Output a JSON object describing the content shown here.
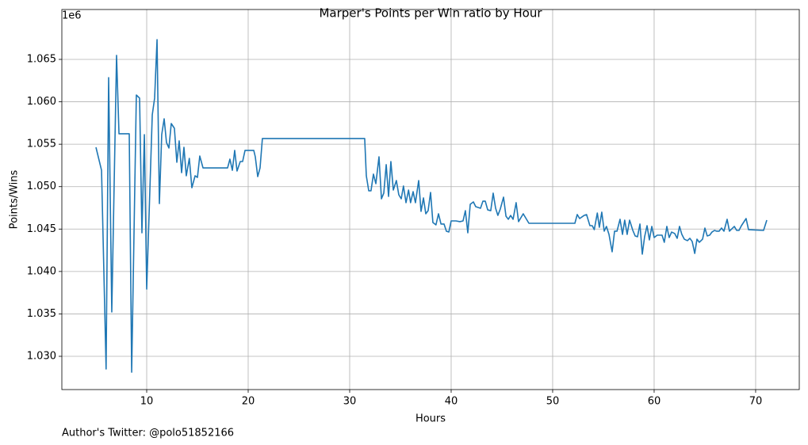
{
  "chart_data": {
    "type": "line",
    "title": "Marper's Points per Win ratio by Hour",
    "x_label": "Hours",
    "y_label": "Points/Wins",
    "y_offset_label": "1e6",
    "annotation": "Author's Twitter: @polo51852166",
    "grid": true,
    "xlim": [
      1.64,
      74.3
    ],
    "ylim": [
      1026080,
      1070880
    ],
    "xticks": [
      10,
      20,
      30,
      40,
      50,
      60,
      70
    ],
    "yticks": [
      {
        "value": 1030000,
        "label": "1.030"
      },
      {
        "value": 1035000,
        "label": "1.035"
      },
      {
        "value": 1040000,
        "label": "1.040"
      },
      {
        "value": 1045000,
        "label": "1.045"
      },
      {
        "value": 1050000,
        "label": "1.050"
      },
      {
        "value": 1055000,
        "label": "1.055"
      },
      {
        "value": 1060000,
        "label": "1.060"
      },
      {
        "value": 1065000,
        "label": "1.065"
      }
    ],
    "series": [
      {
        "name": "Points/Wins",
        "color": "#1f77b4",
        "x": [
          5.0,
          5.55,
          6.0,
          6.25,
          6.56,
          7.03,
          7.27,
          8.28,
          8.52,
          8.98,
          9.3,
          9.53,
          9.77,
          10.0,
          10.55,
          10.78,
          11.02,
          11.25,
          11.48,
          11.72,
          11.95,
          12.19,
          12.42,
          12.73,
          12.97,
          13.2,
          13.44,
          13.67,
          13.9,
          14.2,
          14.45,
          14.77,
          15.0,
          15.23,
          15.55,
          17.97,
          18.2,
          18.44,
          18.67,
          18.9,
          19.22,
          19.45,
          19.69,
          20.55,
          20.7,
          20.94,
          21.17,
          21.4,
          31.48,
          31.64,
          31.88,
          32.1,
          32.34,
          32.58,
          32.89,
          33.13,
          33.36,
          33.6,
          33.83,
          34.06,
          34.3,
          34.6,
          34.84,
          35.08,
          35.3,
          35.55,
          35.8,
          36.0,
          36.25,
          36.48,
          36.8,
          37.03,
          37.27,
          37.5,
          37.73,
          37.97,
          38.2,
          38.5,
          38.75,
          39.0,
          39.3,
          39.53,
          39.77,
          40.0,
          40.47,
          40.86,
          41.17,
          41.4,
          41.64,
          41.88,
          42.19,
          42.42,
          42.89,
          43.13,
          43.36,
          43.6,
          43.9,
          44.14,
          44.38,
          44.6,
          44.84,
          45.16,
          45.4,
          45.63,
          45.86,
          46.1,
          46.4,
          46.64,
          47.1,
          47.66,
          52.19,
          52.42,
          52.66,
          53.1,
          53.34,
          53.67,
          53.9,
          54.1,
          54.4,
          54.6,
          54.84,
          55.08,
          55.3,
          55.55,
          55.86,
          56.1,
          56.34,
          56.64,
          56.88,
          57.1,
          57.34,
          57.58,
          57.9,
          58.13,
          58.36,
          58.6,
          58.83,
          59.06,
          59.3,
          59.53,
          59.77,
          60.0,
          60.3,
          60.78,
          61.0,
          61.25,
          61.48,
          61.72,
          62.03,
          62.27,
          62.5,
          62.73,
          62.97,
          63.28,
          63.52,
          63.75,
          64.0,
          64.22,
          64.45,
          64.77,
          65.0,
          65.23,
          65.47,
          65.7,
          65.94,
          66.17,
          66.4,
          66.64,
          66.88,
          67.19,
          67.42,
          67.66,
          67.9,
          68.13,
          68.36,
          68.6,
          69.06,
          69.3,
          70.78,
          71.1
        ],
        "values": [
          1054640,
          1051930,
          1028510,
          1062850,
          1035230,
          1065470,
          1056230,
          1056230,
          1028130,
          1060800,
          1060430,
          1044560,
          1056130,
          1037930,
          1058470,
          1060430,
          1067330,
          1048010,
          1056130,
          1058000,
          1055200,
          1054550,
          1057440,
          1056880,
          1052870,
          1055390,
          1051650,
          1054640,
          1051280,
          1053330,
          1049870,
          1051280,
          1051090,
          1053610,
          1052210,
          1052210,
          1053240,
          1051930,
          1054270,
          1051840,
          1052960,
          1052960,
          1054270,
          1054270,
          1053520,
          1051180,
          1052210,
          1055670,
          1055670,
          1051280,
          1049510,
          1049510,
          1051470,
          1050350,
          1053520,
          1048570,
          1049230,
          1052590,
          1048850,
          1052960,
          1049600,
          1050720,
          1049040,
          1048570,
          1050070,
          1048110,
          1049600,
          1048110,
          1049410,
          1048110,
          1050720,
          1047080,
          1048670,
          1046800,
          1047170,
          1049320,
          1045770,
          1045490,
          1046800,
          1045590,
          1045590,
          1044750,
          1044650,
          1045960,
          1045960,
          1045870,
          1045960,
          1047170,
          1044560,
          1047920,
          1048200,
          1047640,
          1047450,
          1048290,
          1048290,
          1047260,
          1047170,
          1049230,
          1047450,
          1046610,
          1047360,
          1048760,
          1046520,
          1046150,
          1046610,
          1046150,
          1048110,
          1045870,
          1046800,
          1045680,
          1045680,
          1046710,
          1046240,
          1046610,
          1046710,
          1045400,
          1045400,
          1044930,
          1046890,
          1045210,
          1046990,
          1044750,
          1045310,
          1044370,
          1042320,
          1044750,
          1044750,
          1046150,
          1044370,
          1046050,
          1044370,
          1046050,
          1044840,
          1044190,
          1044090,
          1045590,
          1042040,
          1044090,
          1045400,
          1043720,
          1045310,
          1044000,
          1044280,
          1044280,
          1043440,
          1045310,
          1044000,
          1044650,
          1044470,
          1043910,
          1045310,
          1044370,
          1043810,
          1043630,
          1043910,
          1043530,
          1042130,
          1043810,
          1043440,
          1043810,
          1045120,
          1044190,
          1044280,
          1044650,
          1044840,
          1044750,
          1044750,
          1045120,
          1044750,
          1046150,
          1044750,
          1045030,
          1045310,
          1044840,
          1044840,
          1045400,
          1046240,
          1044930,
          1044840,
          1046050
        ]
      }
    ]
  }
}
